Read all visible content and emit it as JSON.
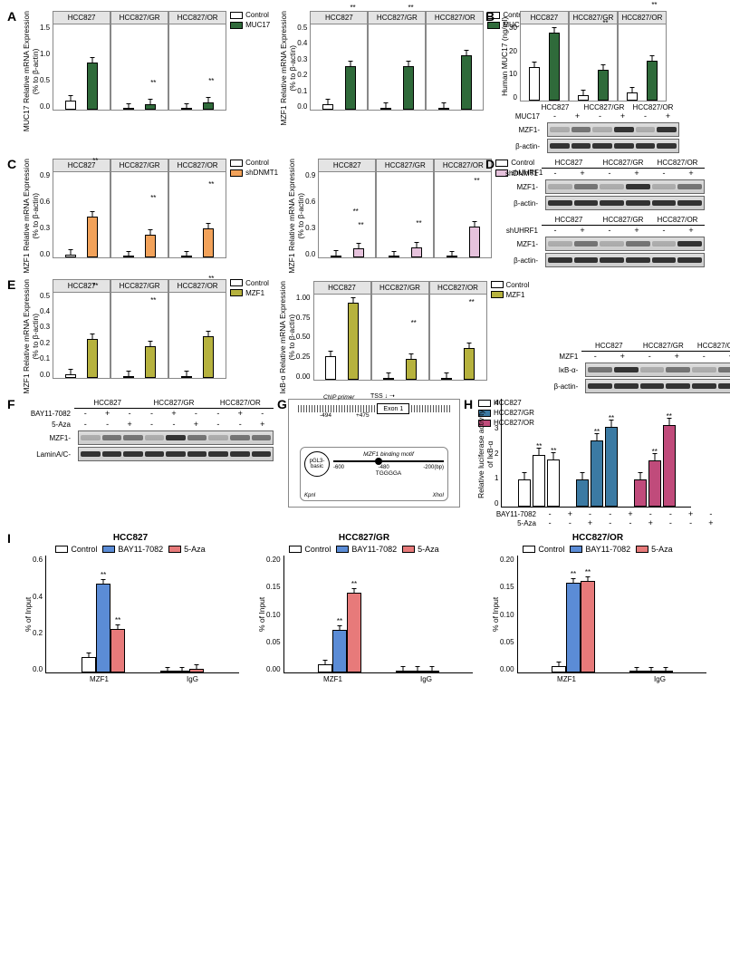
{
  "colors": {
    "control": "#ffffff",
    "muc17": "#2f6a3a",
    "shdnmt1": "#f2a25a",
    "shuhrf1": "#e6c2dc",
    "mzf1": "#b6b23e",
    "hcc827": "#ffffff",
    "hcc827gr": "#3b7aa3",
    "hcc827or": "#c04b7b",
    "bay": "#5b8cd6",
    "aza": "#e77a7a",
    "outline": "#000000",
    "facet_bg": "#e4e4e4"
  },
  "cell_lines": [
    "HCC827",
    "HCC827/GR",
    "HCC827/OR"
  ],
  "sig": "**",
  "panelA": {
    "left": {
      "ylabel": "MUC17 Relative mRNA Expression\n(% to β-actin)",
      "ymax": 1.5,
      "yticks": [
        "0.0",
        "0.5",
        "1.0",
        "1.5"
      ],
      "series": [
        {
          "name": "Control",
          "color": "control"
        },
        {
          "name": "MUC17",
          "color": "muc17"
        }
      ],
      "data": [
        {
          "facet": "HCC827",
          "vals": [
            0.15,
            0.81
          ],
          "sig": [
            null,
            "**"
          ]
        },
        {
          "facet": "HCC827/GR",
          "vals": [
            0.02,
            0.1
          ],
          "sig": [
            null,
            "**"
          ]
        },
        {
          "facet": "HCC827/OR",
          "vals": [
            0.02,
            0.12
          ],
          "sig": [
            null,
            "**"
          ]
        }
      ]
    },
    "right": {
      "ylabel": "MZF1 Relative mRNA Expression\n(% to β-actin)",
      "ymax": 0.5,
      "yticks": [
        "0.0",
        "0.1",
        "0.2",
        "0.3",
        "0.4",
        "0.5"
      ],
      "series": [
        {
          "name": "Control",
          "color": "control"
        },
        {
          "name": "MUC17",
          "color": "muc17"
        }
      ],
      "data": [
        {
          "facet": "HCC827",
          "vals": [
            0.03,
            0.25
          ],
          "sig": [
            null,
            "**"
          ]
        },
        {
          "facet": "HCC827/GR",
          "vals": [
            0.01,
            0.25
          ],
          "sig": [
            null,
            "**"
          ]
        },
        {
          "facet": "HCC827/OR",
          "vals": [
            0.01,
            0.31
          ],
          "sig": [
            null,
            "**"
          ]
        }
      ]
    }
  },
  "panelB": {
    "chart": {
      "ylabel": "Human MUC17 (ng/ml)",
      "ymax": 30,
      "yticks": [
        "0",
        "10",
        "20",
        "30"
      ],
      "data": [
        {
          "facet": "HCC827",
          "vals": [
            13,
            26
          ],
          "sig": [
            null,
            "**"
          ]
        },
        {
          "facet": "HCC827/GR",
          "vals": [
            2,
            12
          ],
          "sig": [
            null,
            "**"
          ]
        },
        {
          "facet": "HCC827/OR",
          "vals": [
            3,
            15.5
          ],
          "sig": [
            null,
            "**"
          ]
        }
      ],
      "series": [
        {
          "name": "Control",
          "color": "control"
        },
        {
          "name": "MUC17",
          "color": "muc17"
        }
      ]
    },
    "blot": {
      "treat_label": "MUC17",
      "treat": [
        "-",
        "+",
        "-",
        "+",
        "-",
        "+"
      ],
      "rows": [
        {
          "label": "MZF1-",
          "bands": [
            "weak",
            "med",
            "weak",
            "strong",
            "weak",
            "strong"
          ]
        },
        {
          "label": "β-actin-",
          "bands": [
            "strong",
            "strong",
            "strong",
            "strong",
            "strong",
            "strong"
          ]
        }
      ]
    }
  },
  "panelC": {
    "left": {
      "ylabel": "MZF1 Relative mRNA Expression\n(% to β-actin)",
      "ymax": 0.9,
      "yticks": [
        "0.0",
        "0.3",
        "0.6",
        "0.9"
      ],
      "series": [
        {
          "name": "Control",
          "color": "control"
        },
        {
          "name": "shDNMT1",
          "color": "shdnmt1"
        }
      ],
      "data": [
        {
          "facet": "HCC827",
          "vals": [
            0.03,
            0.42
          ],
          "sig": [
            null,
            "**"
          ]
        },
        {
          "facet": "HCC827/GR",
          "vals": [
            0.01,
            0.23
          ],
          "sig": [
            null,
            "**"
          ]
        },
        {
          "facet": "HCC827/OR",
          "vals": [
            0.01,
            0.3
          ],
          "sig": [
            null,
            "**"
          ]
        }
      ]
    },
    "right": {
      "ylabel": "MZF1 Relative mRNA Expression\n(% to β-actin)",
      "ymax": 0.9,
      "yticks": [
        "0.0",
        "0.3",
        "0.6",
        "0.9"
      ],
      "series": [
        {
          "name": "Control",
          "color": "control"
        },
        {
          "name": "shUHRF1",
          "color": "shuhrf1"
        }
      ],
      "data": [
        {
          "facet": "HCC827",
          "vals": [
            0.02,
            0.09
          ],
          "sig": [
            null,
            "**"
          ]
        },
        {
          "facet": "HCC827/GR",
          "vals": [
            0.01,
            0.1
          ],
          "sig": [
            null,
            "**"
          ]
        },
        {
          "facet": "HCC827/OR",
          "vals": [
            0.01,
            0.32
          ],
          "sig": [
            null,
            "**"
          ]
        }
      ]
    }
  },
  "panelD": {
    "top": {
      "treat_label": "shDNMT1",
      "treat": [
        "-",
        "+",
        "-",
        "+",
        "-",
        "+"
      ],
      "rows": [
        {
          "label": "MZF1-",
          "bands": [
            "weak",
            "med",
            "weak",
            "strong",
            "weak",
            "med"
          ]
        },
        {
          "label": "β-actin-",
          "bands": [
            "strong",
            "strong",
            "strong",
            "strong",
            "strong",
            "strong"
          ]
        }
      ]
    },
    "bot": {
      "treat_label": "shUHRF1",
      "treat": [
        "-",
        "+",
        "-",
        "+",
        "-",
        "+"
      ],
      "rows": [
        {
          "label": "MZF1-",
          "bands": [
            "weak",
            "med",
            "weak",
            "med",
            "weak",
            "strong"
          ]
        },
        {
          "label": "β-actin-",
          "bands": [
            "strong",
            "strong",
            "strong",
            "strong",
            "strong",
            "strong"
          ]
        }
      ]
    }
  },
  "panelE": {
    "left": {
      "ylabel": "MZF1 Relative mRNA Expression\n(% to β-actin)",
      "ymax": 0.5,
      "yticks": [
        "0.0",
        "0.1",
        "0.2",
        "0.3",
        "0.4",
        "0.5"
      ],
      "series": [
        {
          "name": "Control",
          "color": "control"
        },
        {
          "name": "MZF1",
          "color": "mzf1"
        }
      ],
      "data": [
        {
          "facet": "HCC827",
          "vals": [
            0.02,
            0.22
          ],
          "sig": [
            null,
            "**"
          ]
        },
        {
          "facet": "HCC827/GR",
          "vals": [
            0.01,
            0.18
          ],
          "sig": [
            null,
            "**"
          ]
        },
        {
          "facet": "HCC827/OR",
          "vals": [
            0.01,
            0.24
          ],
          "sig": [
            null,
            "**"
          ]
        }
      ]
    },
    "mid": {
      "ylabel": "IκB-α Relative mRNA Expression\n(% to β-actin)",
      "ymax": 1.0,
      "yticks": [
        "0.00",
        "0.25",
        "0.50",
        "0.75",
        "1.00"
      ],
      "series": [
        {
          "name": "Control",
          "color": "control"
        },
        {
          "name": "MZF1",
          "color": "mzf1"
        }
      ],
      "data": [
        {
          "facet": "HCC827",
          "vals": [
            0.27,
            0.88
          ],
          "sig": [
            null,
            "**"
          ]
        },
        {
          "facet": "HCC827/GR",
          "vals": [
            0.02,
            0.24
          ],
          "sig": [
            null,
            "**"
          ]
        },
        {
          "facet": "HCC827/OR",
          "vals": [
            0.02,
            0.36
          ],
          "sig": [
            null,
            "**"
          ]
        }
      ]
    },
    "blot": {
      "treat_label": "MZF1",
      "treat": [
        "-",
        "+",
        "-",
        "+",
        "-",
        "+"
      ],
      "rows": [
        {
          "label": "IκB-α-",
          "bands": [
            "med",
            "strong",
            "weak",
            "med",
            "weak",
            "med"
          ]
        },
        {
          "label": "β-actin-",
          "bands": [
            "strong",
            "strong",
            "strong",
            "strong",
            "strong",
            "strong"
          ]
        }
      ]
    }
  },
  "panelF": {
    "treats": [
      {
        "label": "BAY11-7082",
        "vals": [
          "-",
          "+",
          "-",
          "-",
          "+",
          "-",
          "-",
          "+",
          "-"
        ]
      },
      {
        "label": "5-Aza",
        "vals": [
          "-",
          "-",
          "+",
          "-",
          "-",
          "+",
          "-",
          "-",
          "+"
        ]
      }
    ],
    "rows": [
      {
        "label": "MZF1-",
        "bands": [
          "weak",
          "med",
          "med",
          "weak",
          "strong",
          "med",
          "weak",
          "med",
          "med"
        ]
      },
      {
        "label": "LaminA/C-",
        "bands": [
          "strong",
          "strong",
          "strong",
          "strong",
          "strong",
          "strong",
          "strong",
          "strong",
          "strong"
        ]
      }
    ]
  },
  "panelG": {
    "tss": "TSS",
    "chip": "ChIP primer",
    "pos1": "-494",
    "pos2": "+475",
    "exon": "Exon 1",
    "plasmid": "pGL3-basic",
    "motif": "MZF1 binding motif",
    "lp": "-600",
    "mp": "-480",
    "rp": "-200(bp)",
    "seq": "TGGGGA",
    "kpnl": "KpnI",
    "xhol": "XhoI"
  },
  "panelH": {
    "ylabel": "Relative luciferase activity\nof IκB-α",
    "ymax": 4,
    "yticks": [
      "0",
      "1",
      "2",
      "3",
      "4"
    ],
    "legend": [
      {
        "name": "HCC827",
        "color": "hcc827"
      },
      {
        "name": "HCC827/GR",
        "color": "hcc827gr"
      },
      {
        "name": "HCC827/OR",
        "color": "hcc827or"
      }
    ],
    "groups": [
      {
        "color": "hcc827",
        "vals": [
          1.0,
          1.9,
          1.75
        ],
        "sig": [
          null,
          "**",
          "**"
        ]
      },
      {
        "color": "hcc827gr",
        "vals": [
          1.0,
          2.45,
          2.95
        ],
        "sig": [
          null,
          "**",
          "**"
        ]
      },
      {
        "color": "hcc827or",
        "vals": [
          1.0,
          1.7,
          3.0
        ],
        "sig": [
          null,
          "**",
          "**"
        ]
      }
    ],
    "treats": [
      {
        "label": "BAY11-7082",
        "vals": [
          "-",
          "+",
          "-",
          "-",
          "+",
          "-",
          "-",
          "+",
          "-"
        ]
      },
      {
        "label": "5-Aza",
        "vals": [
          "-",
          "-",
          "+",
          "-",
          "-",
          "+",
          "-",
          "-",
          "+"
        ]
      }
    ]
  },
  "panelI": {
    "ylabel": "% of Input",
    "legend": [
      {
        "name": "Control",
        "color": "control"
      },
      {
        "name": "BAY11-7082",
        "color": "bay"
      },
      {
        "name": "5-Aza",
        "color": "aza"
      }
    ],
    "xcats": [
      "MZF1",
      "IgG"
    ],
    "charts": [
      {
        "title": "HCC827",
        "ymax": 0.6,
        "yticks": [
          "0.0",
          "0.2",
          "0.4",
          "0.6"
        ],
        "mzf1": [
          0.08,
          0.47,
          0.23
        ],
        "igg": [
          0.008,
          0.007,
          0.018
        ],
        "sig": [
          null,
          "**",
          "**"
        ]
      },
      {
        "title": "HCC827/GR",
        "ymax": 0.2,
        "yticks": [
          "0.00",
          "0.05",
          "0.10",
          "0.15",
          "0.20"
        ],
        "mzf1": [
          0.015,
          0.075,
          0.14
        ],
        "igg": [
          0.003,
          0.003,
          0.003
        ],
        "sig": [
          null,
          "**",
          "**"
        ]
      },
      {
        "title": "HCC827/OR",
        "ymax": 0.2,
        "yticks": [
          "0.00",
          "0.05",
          "0.10",
          "0.15",
          "0.20"
        ],
        "mzf1": [
          0.012,
          0.158,
          0.16
        ],
        "igg": [
          0.002,
          0.002,
          0.002
        ],
        "sig": [
          null,
          "**",
          "**"
        ]
      }
    ]
  }
}
